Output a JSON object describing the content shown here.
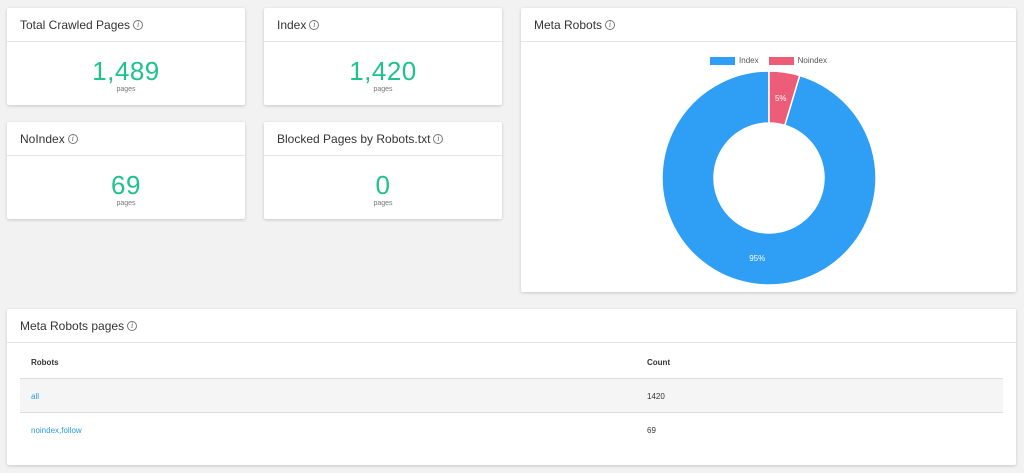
{
  "cards": {
    "total": {
      "title": "Total Crawled Pages",
      "value": "1,489",
      "unit": "pages"
    },
    "index": {
      "title": "Index",
      "value": "1,420",
      "unit": "pages"
    },
    "noindex": {
      "title": "NoIndex",
      "value": "69",
      "unit": "pages"
    },
    "blocked": {
      "title": "Blocked Pages by Robots.txt",
      "value": "0",
      "unit": "pages"
    }
  },
  "meta_robots_chart": {
    "title": "Meta Robots",
    "legend": [
      {
        "label": "Index",
        "color": "#2f9ef5"
      },
      {
        "label": "Noindex",
        "color": "#ee5d78"
      }
    ],
    "slices": [
      {
        "label": "Index",
        "value": 1420,
        "percent_label": "95%",
        "color": "#2f9ef5"
      },
      {
        "label": "Noindex",
        "value": 69,
        "percent_label": "5%",
        "color": "#ee5d78"
      }
    ]
  },
  "chart_data": {
    "type": "pie",
    "title": "",
    "categories": [
      "Index",
      "Noindex"
    ],
    "values": [
      95,
      5
    ],
    "data_labels": [
      "95%",
      "5%"
    ],
    "legend_position": "top"
  },
  "table": {
    "title": "Meta Robots pages",
    "headers": {
      "robots": "Robots",
      "count": "Count"
    },
    "rows": [
      {
        "robots": "all",
        "count": "1420"
      },
      {
        "robots": "noindex,follow",
        "count": "69"
      }
    ]
  },
  "icons": {
    "info": "info-circle-icon"
  }
}
